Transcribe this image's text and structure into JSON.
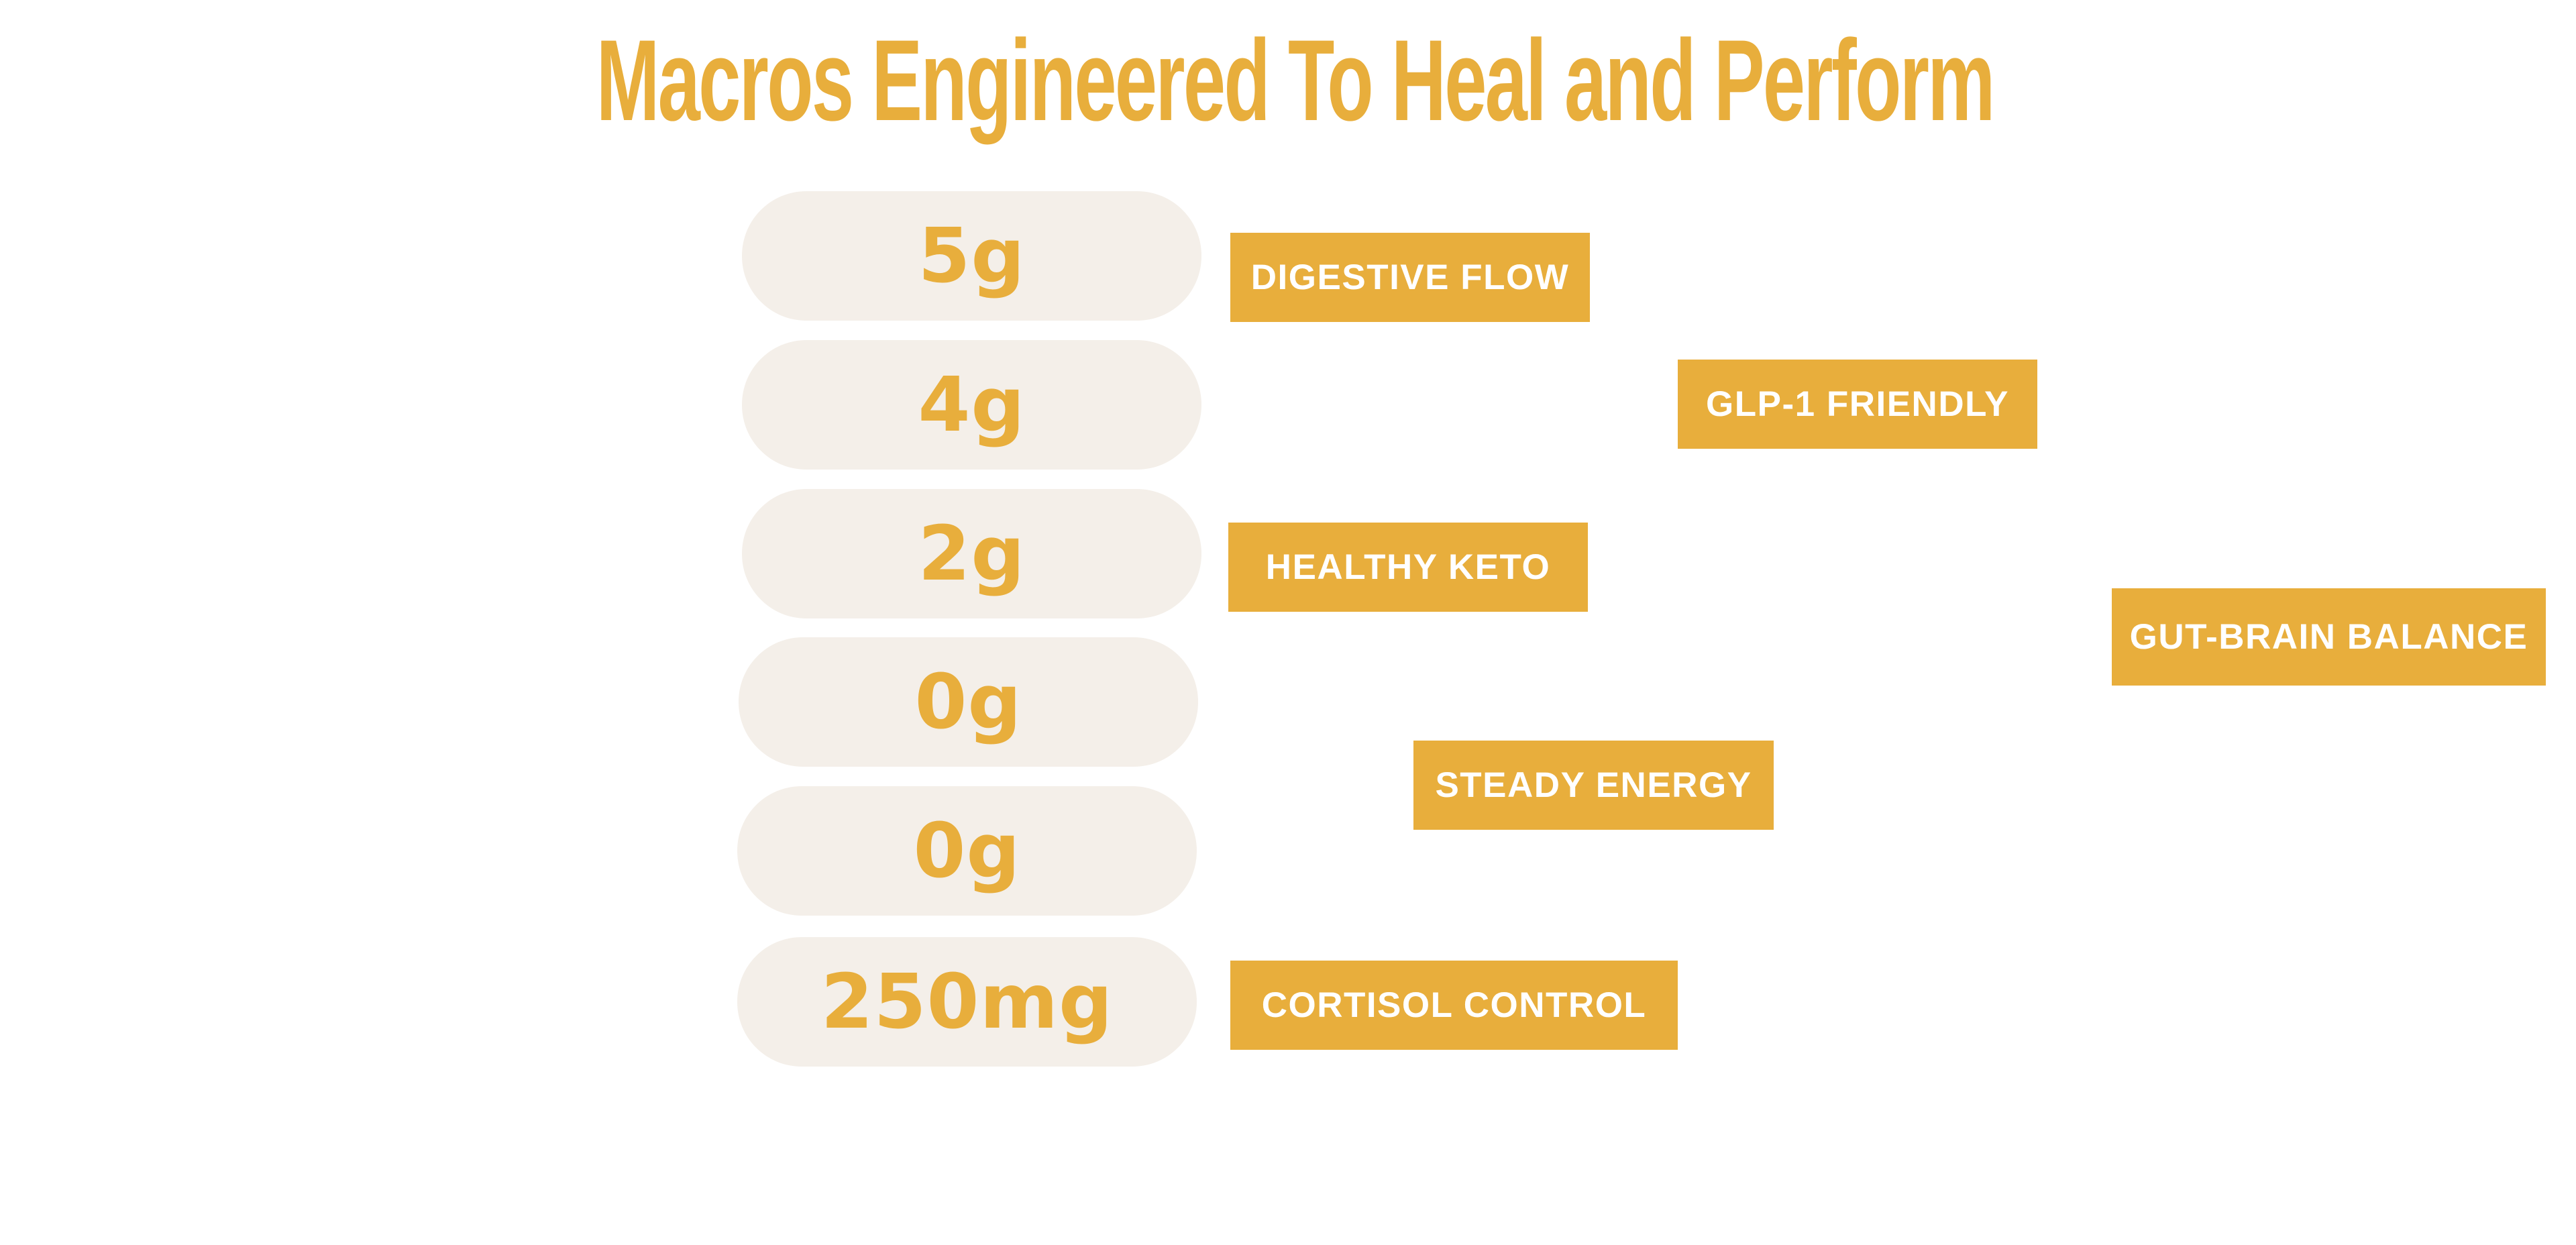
{
  "title": "Macros Engineered To Heal and Perform",
  "colors": {
    "accent": "#E8AE3C",
    "pill_background": "#F4EFE9",
    "tag_text": "#FFFFFF",
    "page_background": "#FFFFFF"
  },
  "macros": [
    {
      "value": "5g"
    },
    {
      "value": "4g"
    },
    {
      "value": "2g"
    },
    {
      "value": "0g"
    },
    {
      "value": "0g"
    },
    {
      "value": "250mg"
    }
  ],
  "tags": [
    {
      "label": "DIGESTIVE FLOW"
    },
    {
      "label": "GLP-1 FRIENDLY"
    },
    {
      "label": "HEALTHY KETO"
    },
    {
      "label": "GUT-BRAIN BALANCE"
    },
    {
      "label": "STEADY ENERGY"
    },
    {
      "label": "CORTISOL CONTROL"
    }
  ]
}
